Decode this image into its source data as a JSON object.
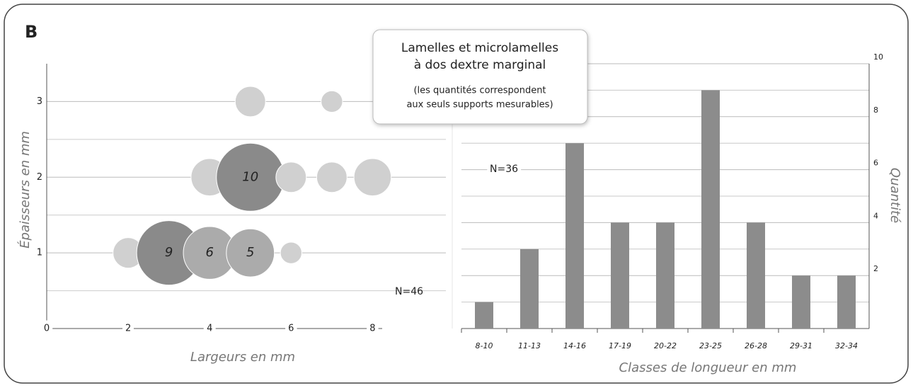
{
  "panel_label": "B",
  "title_box": {
    "title": [
      "Lamelles et microlamelles",
      "à dos dextre marginal"
    ],
    "note": [
      "(les quantités correspondent",
      "aux seuls supports mesurables)"
    ]
  },
  "chart_data": [
    {
      "type": "scatter",
      "xlabel": "Largeurs en mm",
      "ylabel": "Épaisseurs en mm",
      "xlim": [
        0,
        9.8
      ],
      "ylim": [
        0,
        3.5
      ],
      "xticks": [
        0,
        2,
        4,
        6,
        8
      ],
      "yticks": [
        1,
        2,
        3
      ],
      "yticks_minor": [
        0.5,
        1.5,
        2.5
      ],
      "grid": true,
      "annotation": "N=46",
      "x": [
        2,
        3,
        4,
        5,
        6,
        4,
        5,
        6,
        7,
        8,
        5,
        7
      ],
      "y": [
        1,
        1,
        1,
        1,
        1,
        2,
        2,
        2,
        2,
        2,
        3,
        3
      ],
      "sizes": [
        2,
        9,
        6,
        5,
        1,
        3,
        10,
        2,
        2,
        3,
        2,
        1
      ],
      "labels": [
        null,
        "9",
        "6",
        "5",
        null,
        null,
        "10",
        null,
        null,
        null,
        null,
        null
      ],
      "colors": [
        "#d0d0d0",
        "#8a8a8a",
        "#ababab",
        "#ababab",
        "#d0d0d0",
        "#d0d0d0",
        "#8a8a8a",
        "#d0d0d0",
        "#d0d0d0",
        "#d0d0d0",
        "#d0d0d0",
        "#d0d0d0"
      ]
    },
    {
      "type": "bar",
      "xlabel": "Classes de longueur en mm",
      "ylabel": "Quantité",
      "categories": [
        "8-10",
        "11-13",
        "14-16",
        "17-19",
        "20-22",
        "23-25",
        "26-28",
        "29-31",
        "32-34"
      ],
      "values": [
        1,
        3,
        7,
        4,
        4,
        9,
        4,
        2,
        2
      ],
      "color": "#8c8c8c",
      "ylim": [
        0,
        10
      ],
      "yticks": [
        2,
        4,
        6,
        8,
        10
      ],
      "yticks_minor": [
        1,
        3,
        5,
        7,
        9
      ],
      "grid": true,
      "annotation": "N=36"
    }
  ]
}
